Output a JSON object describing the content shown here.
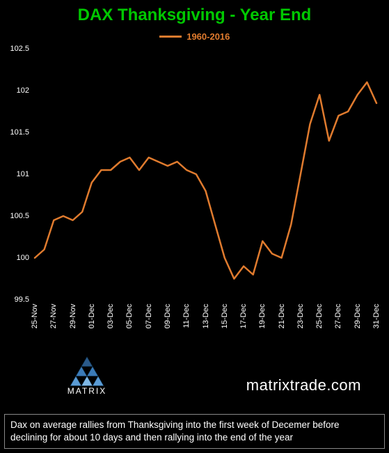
{
  "title": {
    "text": "DAX Thanksgiving - Year End",
    "color": "#00c800",
    "fontsize": 24
  },
  "legend": {
    "label": "1960-2016",
    "color": "#e07b2e"
  },
  "chart": {
    "type": "line",
    "background_color": "#000000",
    "line_color": "#e07b2e",
    "line_width": 2.5,
    "ylim": [
      99.5,
      102.5
    ],
    "ytick_step": 0.5,
    "ytick_color": "#ffffff",
    "yticks": [
      99.5,
      100,
      100.5,
      101,
      101.5,
      102,
      102.5
    ],
    "x_labels": [
      "25-Nov",
      "27-Nov",
      "29-Nov",
      "01-Dec",
      "03-Dec",
      "05-Dec",
      "07-Dec",
      "09-Dec",
      "11-Dec",
      "13-Dec",
      "15-Dec",
      "17-Dec",
      "19-Dec",
      "21-Dec",
      "23-Dec",
      "25-Dec",
      "27-Dec",
      "29-Dec",
      "31-Dec"
    ],
    "x_label_step": 2,
    "x_count": 37,
    "values": [
      100.0,
      100.1,
      100.45,
      100.5,
      100.45,
      100.55,
      100.9,
      101.05,
      101.05,
      101.15,
      101.2,
      101.05,
      101.2,
      101.15,
      101.1,
      101.15,
      101.05,
      101.0,
      100.8,
      100.4,
      100.0,
      99.75,
      99.9,
      99.8,
      100.2,
      100.05,
      100.0,
      100.4,
      101.0,
      101.6,
      101.95,
      101.4,
      101.7,
      101.75,
      101.95,
      102.1,
      101.85
    ],
    "xtick_fontsize": 11,
    "ytick_fontsize": 11
  },
  "branding": {
    "logo_label": "MATRIX",
    "url_text": "matrixtrade.com",
    "logo_tri_colors": [
      "#2a5a8a",
      "#3b7bb8",
      "#5a9bd4",
      "#7fb8e6"
    ]
  },
  "caption": "Dax on average rallies from Thanksgiving into the first week of Decemer before declining for about 10 days and then rallying into the end of the year"
}
